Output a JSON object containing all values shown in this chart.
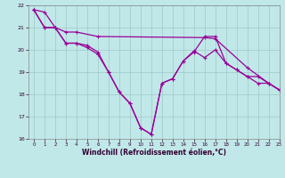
{
  "xlabel": "Windchill (Refroidissement éolien,°C)",
  "bg_color": "#c0e8e8",
  "grid_color": "#a0c8c8",
  "line_color": "#990099",
  "ylim": [
    16,
    22
  ],
  "xlim": [
    -0.5,
    23
  ],
  "yticks": [
    16,
    17,
    18,
    19,
    20,
    21,
    22
  ],
  "xticks": [
    0,
    1,
    2,
    3,
    4,
    5,
    6,
    7,
    8,
    9,
    10,
    11,
    12,
    13,
    14,
    15,
    16,
    17,
    18,
    19,
    20,
    21,
    22,
    23
  ],
  "line1_x": [
    0,
    1,
    2,
    3,
    4,
    6,
    16,
    17,
    20,
    22,
    23
  ],
  "line1_y": [
    21.8,
    21.0,
    21.0,
    20.8,
    20.8,
    20.6,
    20.55,
    20.5,
    19.2,
    18.5,
    18.2
  ],
  "line2_x": [
    0,
    1,
    2,
    3,
    4,
    5,
    6,
    7,
    8,
    9,
    10,
    11,
    12,
    13,
    14,
    15,
    16,
    17,
    18,
    19,
    20,
    21,
    22,
    23
  ],
  "line2_y": [
    21.8,
    21.7,
    21.0,
    20.3,
    20.3,
    20.2,
    19.9,
    19.0,
    18.1,
    17.6,
    16.5,
    16.2,
    18.5,
    18.7,
    19.5,
    19.95,
    19.65,
    20.0,
    19.4,
    19.1,
    18.8,
    18.8,
    18.5,
    18.2
  ],
  "line3_x": [
    0,
    1,
    2,
    3,
    4,
    5,
    6,
    7,
    8,
    9,
    10,
    11,
    12,
    13,
    14,
    15,
    16,
    17,
    18,
    19,
    20,
    21,
    22,
    23
  ],
  "line3_y": [
    21.8,
    21.0,
    21.0,
    20.3,
    20.3,
    20.1,
    19.8,
    19.0,
    18.1,
    17.6,
    16.5,
    16.2,
    18.5,
    18.7,
    19.5,
    19.9,
    20.6,
    20.6,
    19.4,
    19.1,
    18.8,
    18.5,
    18.5,
    18.2
  ]
}
